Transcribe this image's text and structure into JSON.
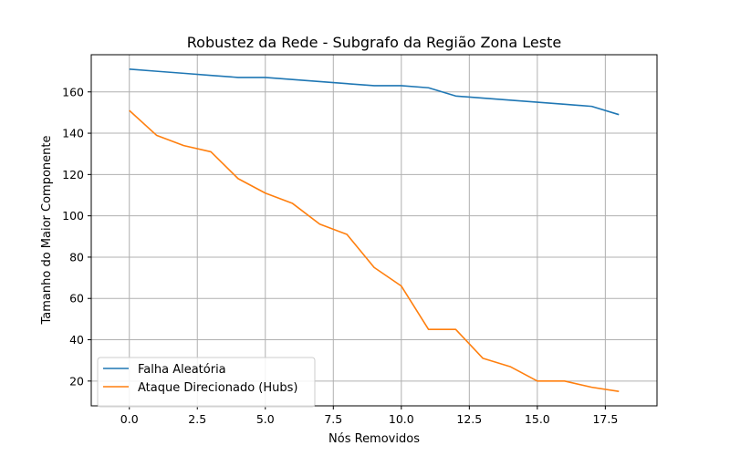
{
  "chart_data": {
    "type": "line",
    "title": "Robustez da Rede - Subgrafo da Região Zona Leste",
    "xlabel": "Nós Removidos",
    "ylabel": "Tamanho do Maior Componente",
    "xlim": [
      -1.4,
      19.4
    ],
    "ylim": [
      8,
      178
    ],
    "xticks": [
      0.0,
      2.5,
      5.0,
      7.5,
      10.0,
      12.5,
      15.0,
      17.5
    ],
    "xtick_labels": [
      "0.0",
      "2.5",
      "5.0",
      "7.5",
      "10.0",
      "12.5",
      "15.0",
      "17.5"
    ],
    "yticks": [
      20,
      40,
      60,
      80,
      100,
      120,
      140,
      160
    ],
    "ytick_labels": [
      "20",
      "40",
      "60",
      "80",
      "100",
      "120",
      "140",
      "160"
    ],
    "grid": true,
    "legend_position": "lower-left",
    "x": [
      0,
      1,
      2,
      3,
      4,
      5,
      6,
      7,
      8,
      9,
      10,
      11,
      12,
      13,
      14,
      15,
      16,
      17,
      18
    ],
    "series": [
      {
        "name": "Falha Aleatória",
        "color": "#1f77b4",
        "values": [
          171,
          170,
          169,
          168,
          167,
          167,
          166,
          165,
          164,
          163,
          163,
          162,
          158,
          157,
          156,
          155,
          154,
          153,
          149
        ]
      },
      {
        "name": "Ataque Direcionado (Hubs)",
        "color": "#ff7f0e",
        "values": [
          151,
          139,
          134,
          131,
          118,
          111,
          106,
          96,
          91,
          75,
          66,
          45,
          45,
          31,
          27,
          20,
          20,
          17,
          15
        ]
      }
    ]
  }
}
